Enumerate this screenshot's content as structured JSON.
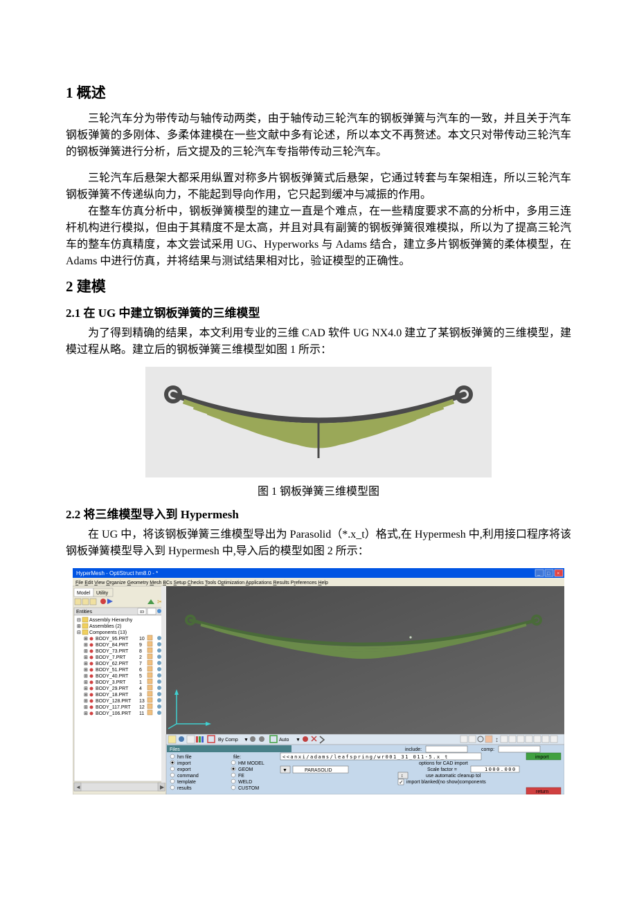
{
  "section1": {
    "heading": "1 概述",
    "para1": "三轮汽车分为带传动与轴传动两类，由于轴传动三轮汽车的钢板弹簧与汽车的一致，并且关于汽车钢板弹簧的多刚体、多柔体建模在一些文献中多有论述，所以本文不再赘述。本文只对带传动三轮汽车的钢板弹簧进行分析，后文提及的三轮汽车专指带传动三轮汽车。",
    "para2": "三轮汽车后悬架大都采用纵置对称多片钢板弹簧式后悬架，它通过转套与车架相连，所以三轮汽车钢板弹簧不传递纵向力，不能起到导向作用，它只起到缓冲与减振的作用。",
    "para3": "在整车仿真分析中，钢板弹簧模型的建立一直是个难点，在一些精度要求不高的分析中，多用三连杆机构进行模拟，但由于其精度不是太高，并且对具有副簧的钢板弹簧很难模拟，所以为了提高三轮汽车的整车仿真精度，本文尝试采用 UG、Hyperworks 与 Adams 结合，建立多片钢板弹簧的柔体模型，在 Adams 中进行仿真，并将结果与测试结果相对比，验证模型的正确性。"
  },
  "section2": {
    "heading": "2 建模"
  },
  "section21": {
    "heading": "2.1 在 UG 中建立钢板弹簧的三维模型",
    "para1": "为了得到精确的结果，本文利用专业的三维 CAD 软件 UG  NX4.0 建立了某钢板弹簧的三维模型，建模过程从略。建立后的钢板弹簧三维模型如图 1 所示：",
    "caption": "图 1 钢板弹簧三维模型图"
  },
  "section22": {
    "heading": "2.2 将三维模型导入到 Hypermesh",
    "para1": "在 UG 中，将该钢板弹簧三维模型导出为 Parasolid（*.x_t）格式,在 Hypermesh 中,利用接口程序将该钢板弹簧模型导入到 Hypermesh 中,导入后的模型如图 2 所示："
  },
  "figure1": {
    "bg_color": "#e8e8e8",
    "spring_color": "#9aa858",
    "hole_color": "#4a4a4a"
  },
  "figure2": {
    "window_title": "HyperMesh - OptiStruct  hm8.0 - *",
    "titlebar_bg": "#0054e3",
    "titlebar_text_color": "#ffffff",
    "menubar_bg": "#ece9d8",
    "viewport_bg": "#545454",
    "sidebar_bg": "#ffffff",
    "panel_bg": "#c5d8eb",
    "menus": [
      "File",
      "Edit",
      "View",
      "Organize",
      "Geometry",
      "Mesh",
      "BCs",
      "Setup",
      "Checks",
      "Tools",
      "Optimization",
      "Applications",
      "Results",
      "Preferences",
      "Help"
    ],
    "tabs": [
      "Model",
      "Utility"
    ],
    "entities_label": "Entities",
    "tree": {
      "assembly_hierarchy": "Assembly Hierarchy",
      "assemblies": "Assemblies (2)",
      "components": "Components (13)",
      "items": [
        {
          "name": "BODY_95.PRT",
          "id": "10"
        },
        {
          "name": "BODY_84.PRT",
          "id": "9"
        },
        {
          "name": "BODY_73.PRT",
          "id": "8"
        },
        {
          "name": "BODY_7.PRT",
          "id": "2"
        },
        {
          "name": "BODY_62.PRT",
          "id": "7"
        },
        {
          "name": "BODY_51.PRT",
          "id": "6"
        },
        {
          "name": "BODY_40.PRT",
          "id": "5"
        },
        {
          "name": "BODY_3.PRT",
          "id": "1"
        },
        {
          "name": "BODY_29.PRT",
          "id": "4"
        },
        {
          "name": "BODY_18.PRT",
          "id": "3"
        },
        {
          "name": "BODY_128.PRT",
          "id": "13"
        },
        {
          "name": "BODY_117.PRT",
          "id": "12"
        },
        {
          "name": "BODY_106.PRT",
          "id": "11"
        }
      ]
    },
    "panel": {
      "files_label": "Files",
      "include_label": "include:",
      "comp_label": "comp:",
      "radios_left": [
        "hm file",
        "import",
        "export",
        "command",
        "template",
        "results"
      ],
      "radios_mid": [
        "HM MODEL",
        "GEOM",
        "FE",
        "WELD",
        "CUSTOM"
      ],
      "file_label": "file:",
      "file_value": "<<anxi/adams/leafspring/wr001_31_011-5.x_t",
      "parasolid_label": "PARASOLID",
      "options_label": "options for CAD import",
      "scale_label": "Scale factor =",
      "scale_value": "1000.000",
      "cleanup_label": "use automatic cleanup tol",
      "blanked_label": "import blanked(no show)components",
      "import_btn": "import",
      "return_btn": "return"
    },
    "toolbar_labels": {
      "by_comp": "By Comp",
      "auto": "Auto"
    }
  }
}
